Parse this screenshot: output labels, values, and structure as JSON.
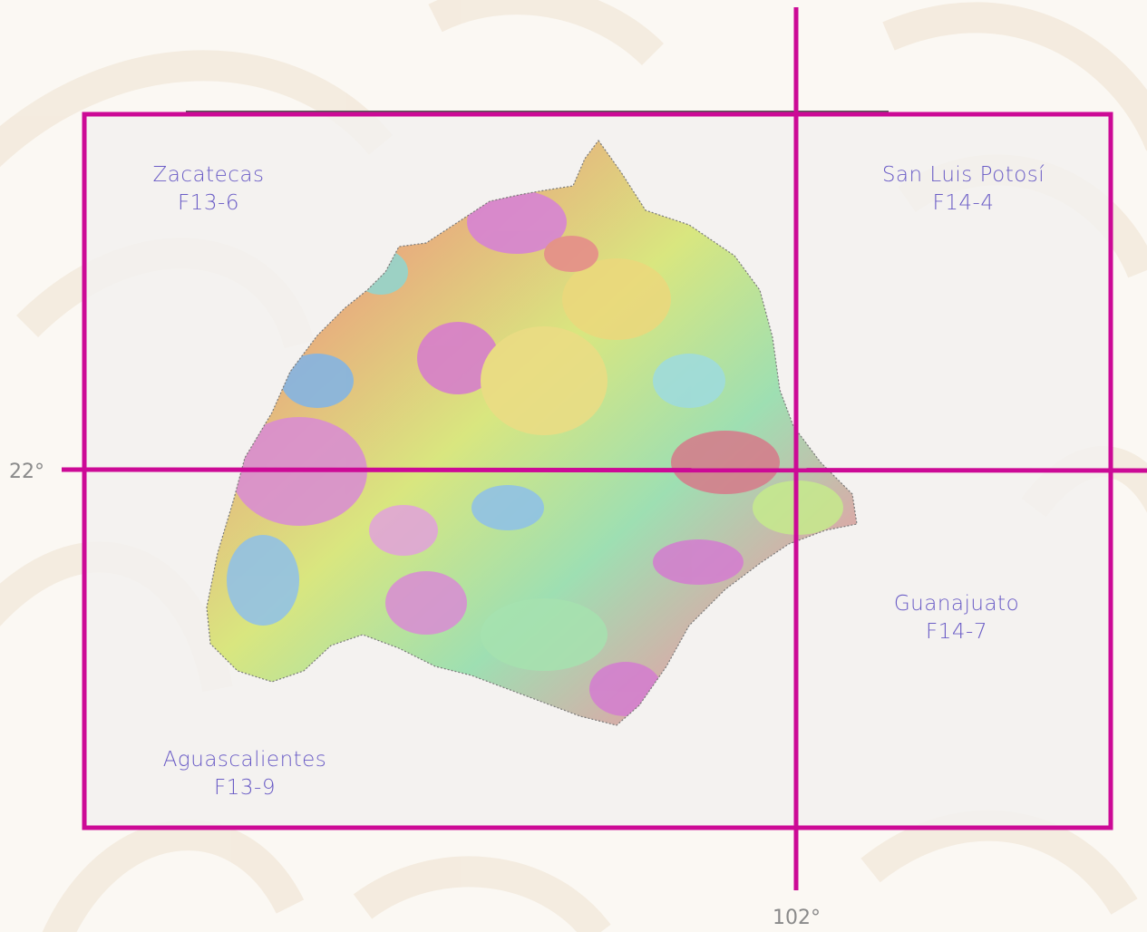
{
  "map": {
    "colors": {
      "grid": "#cc0a96",
      "label": "#6a5cc6",
      "coord": "#8a8a8a"
    },
    "quadrants": [
      {
        "state": "Zacatecas",
        "sheet": "F13-6"
      },
      {
        "state": "San Luis Potosí",
        "sheet": "F14-4"
      },
      {
        "state": "Aguascalientes",
        "sheet": "F13-9"
      },
      {
        "state": "Guanajuato",
        "sheet": "F14-7"
      }
    ],
    "latitude_label": "22°",
    "longitude_label": "102°",
    "raster_legend": "magnetic relief shaded colour raster (blue-green-yellow-red-magenta)"
  }
}
